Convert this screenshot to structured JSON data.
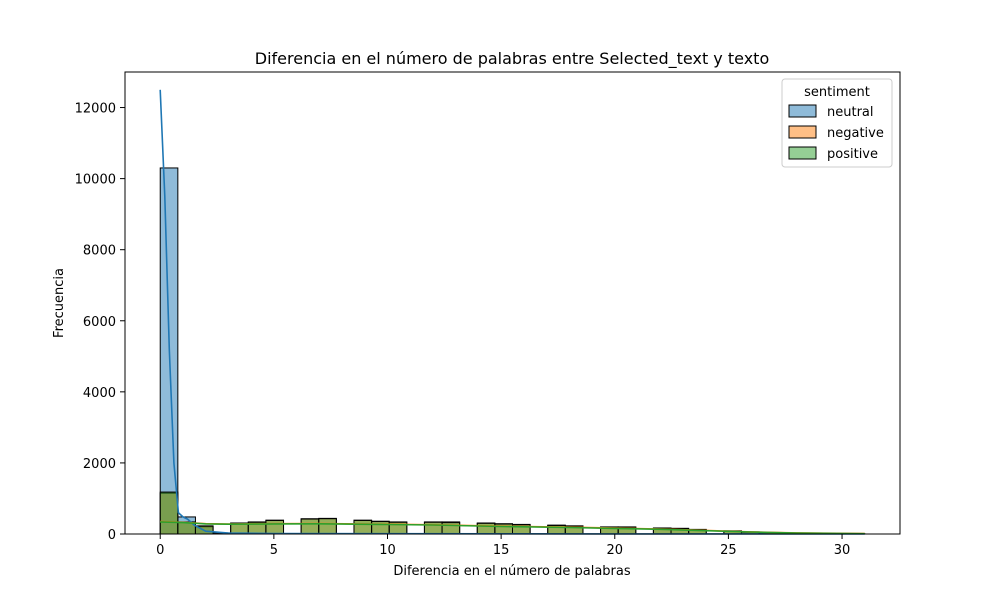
{
  "chart_data": {
    "type": "bar",
    "title": "Diferencia en el número de palabras entre Selected_text y texto",
    "xlabel": "Diferencia en el número de palabras",
    "ylabel": "Frecuencia",
    "xlim": [
      -1.55,
      32.55
    ],
    "ylim": [
      0,
      13000
    ],
    "xticks": [
      0,
      5,
      10,
      15,
      20,
      25,
      30
    ],
    "yticks": [
      0,
      2000,
      4000,
      6000,
      8000,
      10000,
      12000
    ],
    "grid": false,
    "legend": {
      "title": "sentiment",
      "placement": "top-right"
    },
    "bin_edges": [
      0,
      0.775,
      1.55,
      2.325,
      3.1,
      3.875,
      4.65,
      5.425,
      6.2,
      6.975,
      7.75,
      8.525,
      9.3,
      10.075,
      10.85,
      11.625,
      12.4,
      13.175,
      13.95,
      14.725,
      15.5,
      16.275,
      17.05,
      17.825,
      18.6,
      19.375,
      20.15,
      20.925,
      21.7,
      22.475,
      23.25,
      24.025,
      24.8,
      25.575,
      26.35,
      27.125,
      27.9,
      28.675,
      29.45,
      30.225,
      31.0
    ],
    "series": [
      {
        "name": "neutral",
        "color": "#1f77b4",
        "values": [
          10300,
          480,
          200,
          30,
          12,
          10,
          8,
          6,
          5,
          5,
          4,
          4,
          3,
          3,
          3,
          2,
          2,
          2,
          2,
          2,
          1,
          1,
          1,
          1,
          1,
          1,
          1,
          1,
          1,
          1,
          1,
          1,
          0,
          0,
          0,
          0,
          0,
          0,
          0,
          0
        ],
        "kde": [
          [
            0,
            12500
          ],
          [
            0.2,
            9500
          ],
          [
            0.4,
            5200
          ],
          [
            0.6,
            2000
          ],
          [
            0.8,
            600
          ],
          [
            1.0,
            480
          ],
          [
            1.2,
            420
          ],
          [
            1.5,
            250
          ],
          [
            2.0,
            80
          ],
          [
            3.0,
            25
          ],
          [
            5.0,
            15
          ],
          [
            10.0,
            8
          ],
          [
            15.0,
            5
          ],
          [
            20.0,
            3
          ],
          [
            25.0,
            2
          ],
          [
            31.0,
            1
          ]
        ]
      },
      {
        "name": "negative",
        "color": "#ff7f0e",
        "values": [
          1150,
          340,
          230,
          0,
          310,
          340,
          390,
          0,
          430,
          440,
          0,
          390,
          360,
          340,
          0,
          340,
          340,
          0,
          310,
          290,
          270,
          0,
          250,
          230,
          0,
          200,
          200,
          0,
          170,
          160,
          130,
          0,
          90,
          60,
          40,
          0,
          25,
          15,
          8,
          5
        ],
        "kde": [
          [
            0,
            350
          ],
          [
            1.0,
            330
          ],
          [
            2.0,
            290
          ],
          [
            3.0,
            280
          ],
          [
            5.0,
            290
          ],
          [
            7.0,
            295
          ],
          [
            10.0,
            275
          ],
          [
            12.0,
            260
          ],
          [
            15.0,
            220
          ],
          [
            18.0,
            190
          ],
          [
            20.0,
            165
          ],
          [
            22.0,
            140
          ],
          [
            24.0,
            100
          ],
          [
            26.0,
            60
          ],
          [
            28.0,
            30
          ],
          [
            31.0,
            10
          ]
        ]
      },
      {
        "name": "positive",
        "color": "#2ca02c",
        "values": [
          1180,
          330,
          220,
          0,
          300,
          330,
          380,
          0,
          420,
          430,
          0,
          380,
          350,
          330,
          0,
          330,
          320,
          0,
          300,
          280,
          260,
          0,
          240,
          220,
          0,
          190,
          190,
          0,
          160,
          150,
          120,
          0,
          80,
          50,
          35,
          0,
          20,
          12,
          6,
          4
        ],
        "kde": [
          [
            0,
            340
          ],
          [
            1.0,
            320
          ],
          [
            2.0,
            285
          ],
          [
            3.0,
            275
          ],
          [
            5.0,
            285
          ],
          [
            7.0,
            288
          ],
          [
            10.0,
            268
          ],
          [
            12.0,
            252
          ],
          [
            15.0,
            212
          ],
          [
            18.0,
            182
          ],
          [
            20.0,
            158
          ],
          [
            22.0,
            132
          ],
          [
            24.0,
            92
          ],
          [
            26.0,
            55
          ],
          [
            28.0,
            26
          ],
          [
            31.0,
            8
          ]
        ]
      }
    ]
  }
}
